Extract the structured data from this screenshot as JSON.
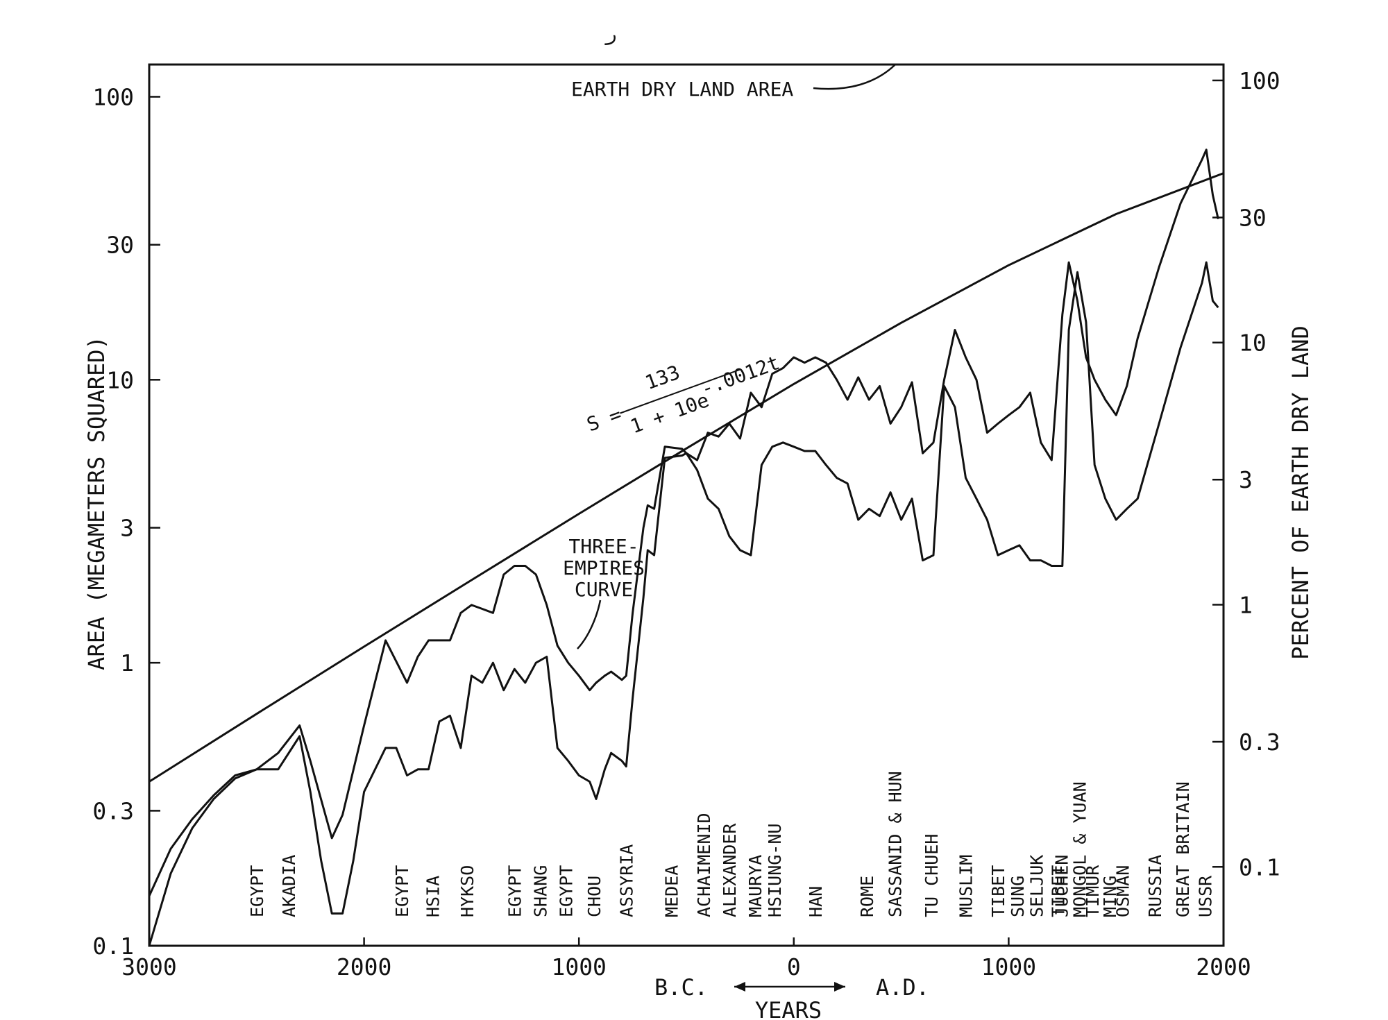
{
  "chart_data": {
    "type": "line",
    "title": "",
    "xlabel": "YEARS",
    "x_direction_labels": {
      "left": "B.C.",
      "right": "A.D."
    },
    "ylabel": "AREA (MEGAMETERS SQUARED)",
    "y2label": "PERCENT OF EARTH DRY LAND",
    "xlim": [
      -3000,
      2000
    ],
    "ylim": [
      0.1,
      130
    ],
    "y_scale": "log",
    "grid": false,
    "x_ticks": [
      -3000,
      -2000,
      -1000,
      0,
      1000,
      2000
    ],
    "x_tick_labels": [
      "3000",
      "2000",
      "1000",
      "0",
      "1000",
      "2000"
    ],
    "y_ticks": [
      0.1,
      0.3,
      1,
      3,
      10,
      30,
      100
    ],
    "y_tick_labels": [
      "0.1",
      "0.3",
      "1",
      "3",
      "10",
      "30",
      "100"
    ],
    "y2_ticks": [
      0.1,
      0.3,
      1,
      3,
      10,
      30,
      100
    ],
    "y2_tick_labels": [
      "0.1",
      "0.3",
      "1",
      "3",
      "10",
      "30",
      "100"
    ],
    "series": [
      {
        "name": "",
        "x": [
          -3000,
          -2900,
          -2800,
          -2700,
          -2600,
          -2500,
          -2400,
          -2300,
          -2250,
          -2150,
          -2100,
          -2000,
          -1900,
          -1800,
          -1750,
          -1700,
          -1600,
          -1550,
          -1500,
          -1450,
          -1400,
          -1350,
          -1300,
          -1250,
          -1200,
          -1150,
          -1100,
          -1050,
          -1000,
          -950,
          -920,
          -880,
          -850,
          -800,
          -780,
          -750,
          -700,
          -680,
          -650,
          -600,
          -520,
          -500,
          -450,
          -400,
          -350,
          -300,
          -250,
          -200,
          -150,
          -100,
          -50,
          0,
          50,
          100,
          150,
          200,
          250,
          300,
          350,
          400,
          450,
          500,
          550,
          600,
          650,
          700,
          750,
          800,
          850,
          900,
          950,
          1000,
          1050,
          1100,
          1150,
          1200,
          1250,
          1280,
          1320,
          1360,
          1400,
          1450,
          1500,
          1550,
          1600,
          1700,
          1800,
          1900,
          1920,
          1950,
          1975
        ],
        "values": [
          0.1,
          0.18,
          0.26,
          0.33,
          0.39,
          0.42,
          0.48,
          0.6,
          0.45,
          0.24,
          0.29,
          0.6,
          1.2,
          0.85,
          1.05,
          1.2,
          1.2,
          1.5,
          1.6,
          1.55,
          1.5,
          2.05,
          2.2,
          2.2,
          2.05,
          1.6,
          1.15,
          1.0,
          0.9,
          0.8,
          0.85,
          0.9,
          0.93,
          0.87,
          0.9,
          1.5,
          3.0,
          3.6,
          3.5,
          5.8,
          5.7,
          5.5,
          5.2,
          6.5,
          6.3,
          7.0,
          6.2,
          9.0,
          8.0,
          10.5,
          11.0,
          12.0,
          11.5,
          12.0,
          11.5,
          10.0,
          8.5,
          10.2,
          8.5,
          9.5,
          7.0,
          8.0,
          9.8,
          5.5,
          6.0,
          10.0,
          15.0,
          12.0,
          10.0,
          6.5,
          7.0,
          7.5,
          8.0,
          9.0,
          6.0,
          5.2,
          17.0,
          26.0,
          19.0,
          12.0,
          10.0,
          8.5,
          7.5,
          9.5,
          14.0,
          25.0,
          42.0,
          60.0,
          65.0,
          45.0,
          37.0
        ]
      },
      {
        "name": "",
        "x": [
          -3000,
          -2900,
          -2800,
          -2700,
          -2600,
          -2500,
          -2400,
          -2300,
          -2250,
          -2200,
          -2150,
          -2100,
          -2050,
          -2000,
          -1900,
          -1850,
          -1800,
          -1750,
          -1700,
          -1650,
          -1600,
          -1550,
          -1500,
          -1450,
          -1400,
          -1350,
          -1300,
          -1250,
          -1200,
          -1150,
          -1100,
          -1050,
          -1000,
          -950,
          -920,
          -880,
          -850,
          -800,
          -780,
          -750,
          -700,
          -680,
          -650,
          -600,
          -520,
          -500,
          -450,
          -400,
          -350,
          -300,
          -250,
          -200,
          -150,
          -100,
          -50,
          0,
          50,
          100,
          150,
          200,
          250,
          300,
          350,
          400,
          450,
          500,
          550,
          600,
          650,
          700,
          750,
          800,
          850,
          900,
          950,
          1000,
          1050,
          1100,
          1150,
          1200,
          1250,
          1280,
          1320,
          1360,
          1400,
          1450,
          1500,
          1550,
          1600,
          1700,
          1800,
          1900,
          1920,
          1950,
          1975
        ],
        "values": [
          0.15,
          0.22,
          0.28,
          0.34,
          0.4,
          0.42,
          0.42,
          0.55,
          0.35,
          0.2,
          0.13,
          0.13,
          0.2,
          0.35,
          0.5,
          0.5,
          0.4,
          0.42,
          0.42,
          0.62,
          0.65,
          0.5,
          0.9,
          0.85,
          1.0,
          0.8,
          0.95,
          0.85,
          1.0,
          1.05,
          0.5,
          0.45,
          0.4,
          0.38,
          0.33,
          0.42,
          0.48,
          0.45,
          0.43,
          0.75,
          1.7,
          2.5,
          2.4,
          5.3,
          5.4,
          5.5,
          4.8,
          3.8,
          3.5,
          2.8,
          2.5,
          2.4,
          5.0,
          5.8,
          6.0,
          5.8,
          5.6,
          5.6,
          5.0,
          4.5,
          4.3,
          3.2,
          3.5,
          3.3,
          4.0,
          3.2,
          3.8,
          2.3,
          2.4,
          9.5,
          8.0,
          4.5,
          3.8,
          3.2,
          2.4,
          2.5,
          2.6,
          2.3,
          2.3,
          2.2,
          2.2,
          15.0,
          24.0,
          16.0,
          5.0,
          3.8,
          3.2,
          3.5,
          3.8,
          7.0,
          13.0,
          22.0,
          26.0,
          19.0,
          18.0
        ]
      },
      {
        "name": "",
        "x": [
          -3000,
          -2500,
          -2000,
          -1500,
          -1000,
          -500,
          0,
          500,
          1000,
          1500,
          2000
        ],
        "values": [
          0.38,
          0.66,
          1.14,
          1.96,
          3.36,
          5.72,
          9.66,
          15.9,
          25.4,
          38.5,
          53.7
        ]
      }
    ],
    "annotations": {
      "dry_land": "EARTH DRY LAND AREA",
      "three_empires": [
        "THREE-",
        "EMPIRES",
        "CURVE"
      ],
      "formula": {
        "lhs": "S =",
        "numerator": "133",
        "denominator": "1 + 10e",
        "exponent": "-.0012t"
      },
      "empires": [
        {
          "label": "EGYPT",
          "year": -2500
        },
        {
          "label": "AKADIA",
          "year": -2350
        },
        {
          "label": "EGYPT",
          "year": -1825
        },
        {
          "label": "HSIA",
          "year": -1680
        },
        {
          "label": "HYKSO",
          "year": -1520
        },
        {
          "label": "EGYPT",
          "year": -1300
        },
        {
          "label": "SHANG",
          "year": -1180
        },
        {
          "label": "EGYPT",
          "year": -1060
        },
        {
          "label": "CHOU",
          "year": -930
        },
        {
          "label": "ASSYRIA",
          "year": -780
        },
        {
          "label": "MEDEA",
          "year": -570
        },
        {
          "label": "ACHAIMENID",
          "year": -420
        },
        {
          "label": "ALEXANDER",
          "year": -300
        },
        {
          "label": "MAURYA",
          "year": -180
        },
        {
          "label": "HSIUNG-NU",
          "year": -90
        },
        {
          "label": "HAN",
          "year": 100
        },
        {
          "label": "ROME",
          "year": 340
        },
        {
          "label": "SASSANID & HUN",
          "year": 470
        },
        {
          "label": "TU CHUEH",
          "year": 640
        },
        {
          "label": "MUSLIM",
          "year": 800
        },
        {
          "label": "TIBET",
          "year": 950
        },
        {
          "label": "SUNG",
          "year": 1040
        },
        {
          "label": "SELJUK",
          "year": 1130
        },
        {
          "label": "TIBET",
          "year": 1230
        },
        {
          "label": "JUCHEN",
          "year": 1245
        },
        {
          "label": "MONGOL & YUAN",
          "year": 1330
        },
        {
          "label": "TIMUR",
          "year": 1390
        },
        {
          "label": "MING",
          "year": 1470
        },
        {
          "label": "OSMAN",
          "year": 1530
        },
        {
          "label": "RUSSIA",
          "year": 1680
        },
        {
          "label": "GREAT BRITAIN",
          "year": 1810
        },
        {
          "label": "USSR",
          "year": 1915
        }
      ]
    }
  },
  "stray_mark": "ر"
}
